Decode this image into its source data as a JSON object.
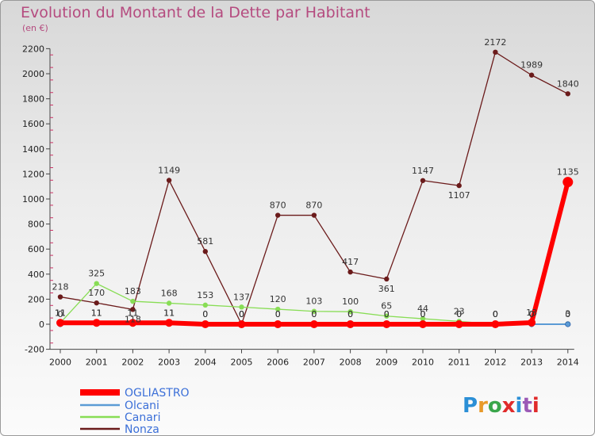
{
  "chart_data": {
    "type": "line",
    "title": "Evolution du Montant de la Dette par Habitant",
    "subtitle": "(en €)",
    "xlabel": "",
    "ylabel": "",
    "x": [
      "2000",
      "2001",
      "2002",
      "2003",
      "2004",
      "2005",
      "2006",
      "2007",
      "2008",
      "2009",
      "2010",
      "2011",
      "2012",
      "2013",
      "2014"
    ],
    "ylim": [
      -200,
      2200
    ],
    "yticks": [
      "-200",
      "0",
      "200",
      "400",
      "600",
      "800",
      "1000",
      "1200",
      "1400",
      "1600",
      "1800",
      "2000",
      "2200"
    ],
    "grid": false,
    "legend_placement": "bottom-left",
    "series": [
      {
        "name": "OGLIASTRO",
        "color": "#ff0000",
        "values": [
          11,
          11,
          11,
          11,
          0,
          0,
          0,
          0,
          0,
          0,
          0,
          0,
          0,
          13,
          1135
        ],
        "labels": [
          "11",
          "11",
          "11",
          "11",
          "0",
          "0",
          "0",
          "0",
          "0",
          "0",
          "0",
          "0",
          "0",
          "13",
          "1135"
        ]
      },
      {
        "name": "Olcani",
        "color": "#5b9bd5",
        "values": [
          0,
          11,
          11,
          11,
          0,
          0,
          0,
          0,
          0,
          0,
          0,
          0,
          0,
          0,
          0
        ],
        "labels": [
          "0",
          "11",
          "11",
          "11",
          "0",
          "0",
          "0",
          "0",
          "0",
          "0",
          "0",
          "0",
          "0",
          "0",
          "0"
        ]
      },
      {
        "name": "Canari",
        "color": "#88dd55",
        "values": [
          11,
          325,
          183,
          168,
          153,
          137,
          120,
          103,
          100,
          65,
          44,
          23,
          0,
          0,
          3
        ],
        "labels": [
          "11",
          "325",
          "183",
          "168",
          "153",
          "137",
          "120",
          "103",
          "100",
          "65",
          "44",
          "23",
          "0",
          "0",
          "3"
        ]
      },
      {
        "name": "Nonza",
        "color": "#6b1b1b",
        "values": [
          218,
          170,
          118,
          1149,
          581,
          0,
          870,
          870,
          417,
          361,
          1147,
          1107,
          2172,
          1989,
          1840
        ],
        "labels": [
          "218",
          "170",
          "118",
          "1149",
          "581",
          "0",
          "870",
          "870",
          "417",
          "361",
          "1147",
          "1107",
          "2172",
          "1989",
          "1840"
        ]
      }
    ],
    "logo": "Proxiti"
  }
}
